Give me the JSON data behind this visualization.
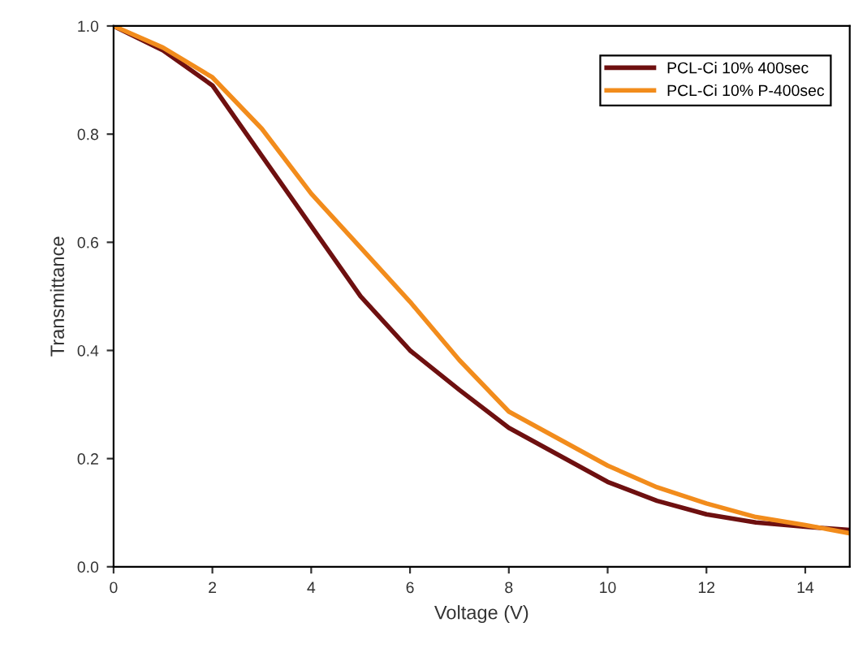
{
  "chart_data": {
    "type": "line",
    "xlabel": "Voltage (V)",
    "ylabel": "Transmittance",
    "xlim": [
      0,
      14.9
    ],
    "ylim": [
      0,
      1.0
    ],
    "xticks": [
      0,
      2,
      4,
      6,
      8,
      10,
      12,
      14
    ],
    "yticks": [
      {
        "value": 0,
        "label": "0.0"
      },
      {
        "value": 0.2,
        "label": "0.2"
      },
      {
        "value": 0.4,
        "label": "0.4"
      },
      {
        "value": 0.6,
        "label": "0.6"
      },
      {
        "value": 0.8,
        "label": "0.8"
      },
      {
        "value": 1.0,
        "label": "1.0"
      }
    ],
    "grid": false,
    "legend": "top right",
    "marker": "none",
    "line_style": "solid",
    "x": [
      0,
      1,
      2,
      3,
      4,
      5,
      6,
      7,
      8,
      9,
      10,
      11,
      12,
      13,
      14,
      14.9
    ],
    "series": [
      {
        "name": "PCL-Ci 10% 400sec",
        "color": "#6e1010",
        "values": [
          1.0,
          0.955,
          0.89,
          0.76,
          0.63,
          0.5,
          0.4,
          0.327,
          0.257,
          0.207,
          0.157,
          0.122,
          0.097,
          0.082,
          0.074,
          0.068
        ]
      },
      {
        "name": "PCL-Ci 10% P-400sec",
        "color": "#f28c1c",
        "values": [
          1.0,
          0.96,
          0.905,
          0.81,
          0.69,
          0.59,
          0.49,
          0.382,
          0.287,
          0.237,
          0.187,
          0.147,
          0.117,
          0.092,
          0.077,
          0.062
        ]
      }
    ]
  }
}
